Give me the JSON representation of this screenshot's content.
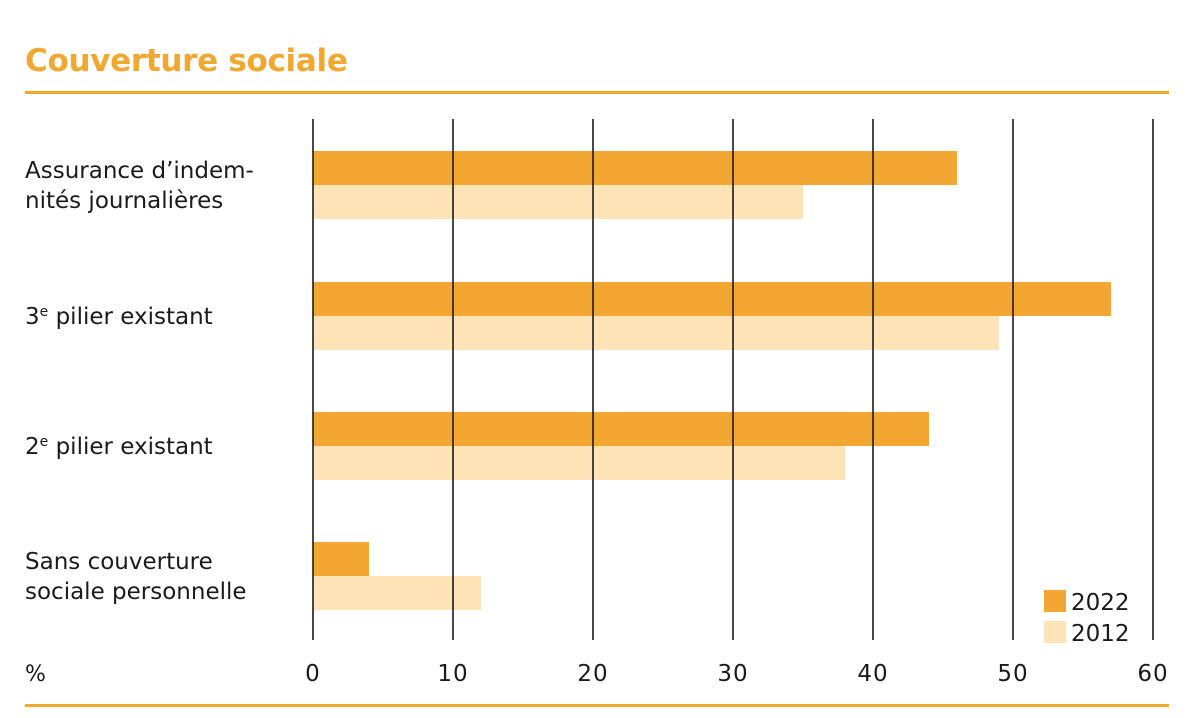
{
  "chart_data": {
    "type": "bar",
    "orientation": "horizontal",
    "title": "Couverture sociale",
    "xlabel": "%",
    "ylabel": "",
    "xlim": [
      0,
      60
    ],
    "ticks": [
      0,
      10,
      20,
      30,
      40,
      50,
      60
    ],
    "categories": [
      [
        "Assurance d’indem-",
        "nités journalières"
      ],
      [
        "3|e| pilier existant"
      ],
      [
        "2|e| pilier existant"
      ],
      [
        "Sans couverture",
        "sociale personnelle"
      ]
    ],
    "series": [
      {
        "name": "2022",
        "color": "#f4a632",
        "values": [
          46,
          57,
          44,
          4
        ]
      },
      {
        "name": "2012",
        "color": "#fde3b5",
        "values": [
          35,
          49,
          38,
          12
        ]
      }
    ],
    "grid": true,
    "legend": "bottom-right"
  }
}
